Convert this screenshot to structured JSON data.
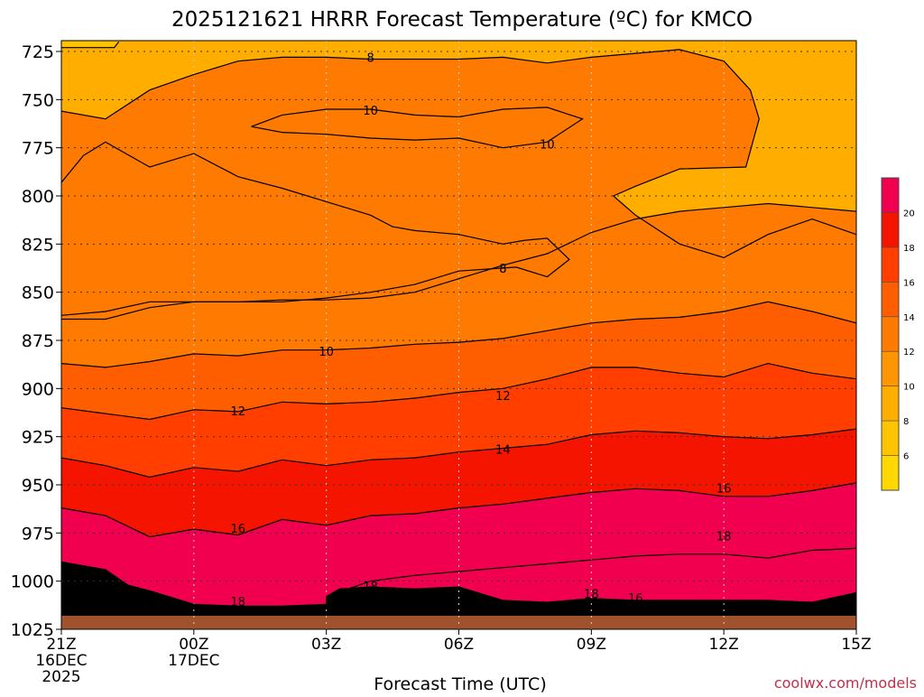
{
  "chart_data": {
    "type": "contour",
    "title": "2025121621 HRRR Forecast Temperature (ºC) for KMCO",
    "xlabel": "Forecast Time (UTC)",
    "credit": "coolwx.com/models",
    "x_ticks": [
      {
        "label": "21Z",
        "sub1": "16DEC",
        "sub2": "2025",
        "hour": 0
      },
      {
        "label": "00Z",
        "sub1": "17DEC",
        "sub2": "",
        "hour": 3
      },
      {
        "label": "03Z",
        "sub1": "",
        "sub2": "",
        "hour": 6
      },
      {
        "label": "06Z",
        "sub1": "",
        "sub2": "",
        "hour": 9
      },
      {
        "label": "09Z",
        "sub1": "",
        "sub2": "",
        "hour": 12
      },
      {
        "label": "12Z",
        "sub1": "",
        "sub2": "",
        "hour": 15
      },
      {
        "label": "15Z",
        "sub1": "",
        "sub2": "",
        "hour": 18
      }
    ],
    "xlim": [
      0,
      18
    ],
    "y_ticks": [
      725,
      750,
      775,
      800,
      825,
      850,
      875,
      900,
      925,
      950,
      975,
      1000,
      1025
    ],
    "ylim": [
      720,
      1015
    ],
    "colorbar": {
      "labels": [
        6,
        8,
        10,
        12,
        14,
        16,
        18,
        20
      ],
      "colors": [
        "#ffd800",
        "#ffc400",
        "#ffae00",
        "#ff9500",
        "#ff7a00",
        "#ff5e00",
        "#ff3e00",
        "#f41400",
        "#f20050"
      ]
    },
    "terrain_color": "#a0522d",
    "contours": [
      {
        "level": 8,
        "points": [
          [
            0,
            723
          ],
          [
            1.2,
            723
          ],
          [
            1.3,
            720
          ]
        ]
      },
      {
        "level": 8,
        "points": [
          [
            0,
            793
          ],
          [
            0.5,
            779
          ],
          [
            1,
            772
          ],
          [
            2,
            785
          ],
          [
            3,
            778
          ],
          [
            4,
            790
          ],
          [
            5,
            796
          ],
          [
            6,
            803
          ],
          [
            7,
            810
          ],
          [
            7.5,
            816
          ],
          [
            8,
            818
          ],
          [
            9,
            820
          ],
          [
            10,
            825
          ],
          [
            10.5,
            823
          ],
          [
            11,
            822
          ],
          [
            11.5,
            833
          ],
          [
            11,
            842
          ],
          [
            10.3,
            837
          ],
          [
            9,
            839
          ],
          [
            8,
            846
          ],
          [
            7,
            850
          ],
          [
            6,
            853
          ],
          [
            5,
            855
          ],
          [
            3,
            855
          ],
          [
            2,
            855
          ],
          [
            1,
            860
          ],
          [
            0,
            862
          ]
        ]
      },
      {
        "level": 10,
        "points": [
          [
            0,
            756
          ],
          [
            1,
            760
          ],
          [
            2,
            745
          ],
          [
            3,
            737
          ],
          [
            4,
            730
          ],
          [
            5,
            728
          ],
          [
            6,
            728
          ],
          [
            7,
            729
          ],
          [
            8,
            729
          ],
          [
            9,
            729
          ],
          [
            10,
            728
          ],
          [
            11,
            731
          ],
          [
            12,
            728
          ],
          [
            13,
            726
          ],
          [
            14,
            724
          ],
          [
            15,
            730
          ],
          [
            15.6,
            745
          ],
          [
            15.8,
            760
          ],
          [
            15.5,
            785
          ],
          [
            14,
            786
          ],
          [
            13,
            795
          ],
          [
            12.5,
            800
          ],
          [
            13,
            810
          ],
          [
            14,
            825
          ],
          [
            15,
            832
          ],
          [
            16,
            820
          ],
          [
            17,
            812
          ],
          [
            18,
            820
          ]
        ]
      },
      {
        "level": 10,
        "points": [
          [
            4.3,
            764
          ],
          [
            5,
            758
          ],
          [
            6,
            755
          ],
          [
            7,
            755
          ],
          [
            8,
            758
          ],
          [
            9,
            759
          ],
          [
            10,
            755
          ],
          [
            11,
            754
          ],
          [
            11.8,
            760
          ],
          [
            11,
            772
          ],
          [
            10,
            775
          ],
          [
            9,
            770
          ],
          [
            8,
            771
          ],
          [
            7,
            770
          ],
          [
            6,
            768
          ],
          [
            5,
            767
          ],
          [
            4.3,
            764
          ]
        ]
      },
      {
        "level": 10,
        "points": [
          [
            0,
            864
          ],
          [
            1,
            864
          ],
          [
            2,
            858
          ],
          [
            3,
            855
          ],
          [
            4,
            855
          ],
          [
            5,
            854
          ],
          [
            6,
            854
          ],
          [
            7,
            853
          ],
          [
            8,
            850
          ],
          [
            9,
            843
          ],
          [
            10,
            836
          ],
          [
            11,
            830
          ],
          [
            12,
            819
          ],
          [
            13,
            812
          ],
          [
            14,
            808
          ],
          [
            15,
            806
          ],
          [
            16,
            804
          ],
          [
            17,
            806
          ],
          [
            18,
            808
          ]
        ]
      },
      {
        "level": 12,
        "points": [
          [
            0,
            887
          ],
          [
            1,
            889
          ],
          [
            2,
            886
          ],
          [
            3,
            882
          ],
          [
            4,
            883
          ],
          [
            5,
            880
          ],
          [
            6,
            880
          ],
          [
            7,
            879
          ],
          [
            8,
            877
          ],
          [
            9,
            876
          ],
          [
            10,
            874
          ],
          [
            11,
            870
          ],
          [
            12,
            866
          ],
          [
            13,
            864
          ],
          [
            14,
            863
          ],
          [
            15,
            860
          ],
          [
            16,
            855
          ],
          [
            17,
            860
          ],
          [
            18,
            866
          ]
        ]
      },
      {
        "level": 14,
        "points": [
          [
            0,
            910
          ],
          [
            1,
            913
          ],
          [
            2,
            916
          ],
          [
            3,
            911
          ],
          [
            4,
            912
          ],
          [
            5,
            907
          ],
          [
            6,
            908
          ],
          [
            7,
            907
          ],
          [
            8,
            905
          ],
          [
            9,
            902
          ],
          [
            10,
            900
          ],
          [
            11,
            895
          ],
          [
            12,
            889
          ],
          [
            13,
            889
          ],
          [
            14,
            892
          ],
          [
            15,
            894
          ],
          [
            16,
            887
          ],
          [
            17,
            892
          ],
          [
            18,
            895
          ]
        ]
      },
      {
        "level": 16,
        "points": [
          [
            0,
            936
          ],
          [
            1,
            940
          ],
          [
            2,
            946
          ],
          [
            3,
            941
          ],
          [
            4,
            943
          ],
          [
            5,
            937
          ],
          [
            6,
            940
          ],
          [
            7,
            937
          ],
          [
            8,
            936
          ],
          [
            9,
            933
          ],
          [
            10,
            931
          ],
          [
            11,
            929
          ],
          [
            12,
            924
          ],
          [
            13,
            922
          ],
          [
            14,
            923
          ],
          [
            15,
            925
          ],
          [
            16,
            926
          ],
          [
            17,
            924
          ],
          [
            18,
            921
          ]
        ]
      },
      {
        "level": 18,
        "points": [
          [
            0,
            962
          ],
          [
            1,
            966
          ],
          [
            2,
            977
          ],
          [
            3,
            973
          ],
          [
            4,
            976
          ],
          [
            5,
            968
          ],
          [
            6,
            971
          ],
          [
            7,
            966
          ],
          [
            8,
            965
          ],
          [
            9,
            962
          ],
          [
            10,
            960
          ],
          [
            11,
            957
          ],
          [
            12,
            954
          ],
          [
            13,
            952
          ],
          [
            14,
            953
          ],
          [
            15,
            956
          ],
          [
            16,
            956
          ],
          [
            17,
            953
          ],
          [
            18,
            949
          ]
        ]
      },
      {
        "level": 18,
        "points": [
          [
            6,
            1008
          ],
          [
            7,
            1000
          ],
          [
            8,
            997
          ],
          [
            9,
            995
          ],
          [
            10,
            993
          ],
          [
            11,
            991
          ],
          [
            12,
            989
          ],
          [
            13,
            987
          ],
          [
            14,
            986
          ],
          [
            15,
            986
          ],
          [
            16,
            988
          ],
          [
            17,
            984
          ],
          [
            18,
            983
          ]
        ]
      },
      {
        "level": 20,
        "points": [
          [
            0,
            990
          ],
          [
            1,
            994
          ],
          [
            1.5,
            1002
          ],
          [
            2,
            1005
          ],
          [
            3,
            1012
          ],
          [
            4,
            1013
          ],
          [
            5,
            1013
          ],
          [
            6,
            1012
          ],
          [
            6,
            1008
          ],
          [
            6.3,
            1004
          ],
          [
            7,
            1003
          ],
          [
            8,
            1004
          ],
          [
            9,
            1003
          ],
          [
            10,
            1010
          ],
          [
            11,
            1011
          ],
          [
            12,
            1009
          ],
          [
            13,
            1010
          ],
          [
            14,
            1010
          ],
          [
            15,
            1010
          ],
          [
            16,
            1010
          ],
          [
            17,
            1011
          ],
          [
            18,
            1006
          ]
        ]
      }
    ],
    "labels": [
      {
        "text": "8",
        "x": 7.0,
        "y": 728.5
      },
      {
        "text": "10",
        "x": 7.0,
        "y": 756.0
      },
      {
        "text": "10",
        "x": 11.0,
        "y": 773.5
      },
      {
        "text": "8",
        "x": 10.0,
        "y": 838.0
      },
      {
        "text": "10",
        "x": 6.0,
        "y": 881.0
      },
      {
        "text": "12",
        "x": 4.0,
        "y": 912.0
      },
      {
        "text": "12",
        "x": 10.0,
        "y": 904.0
      },
      {
        "text": "14",
        "x": 10.0,
        "y": 932.0
      },
      {
        "text": "16",
        "x": 4.0,
        "y": 973.0
      },
      {
        "text": "16",
        "x": 15.0,
        "y": 952.0
      },
      {
        "text": "18",
        "x": 15.0,
        "y": 977.0
      },
      {
        "text": "18",
        "x": 7.0,
        "y": 1003.0
      },
      {
        "text": "18",
        "x": 4.0,
        "y": 1011.0
      },
      {
        "text": "18",
        "x": 12.0,
        "y": 1007.0
      },
      {
        "text": "16",
        "x": 13.0,
        "y": 1009.0
      }
    ]
  }
}
